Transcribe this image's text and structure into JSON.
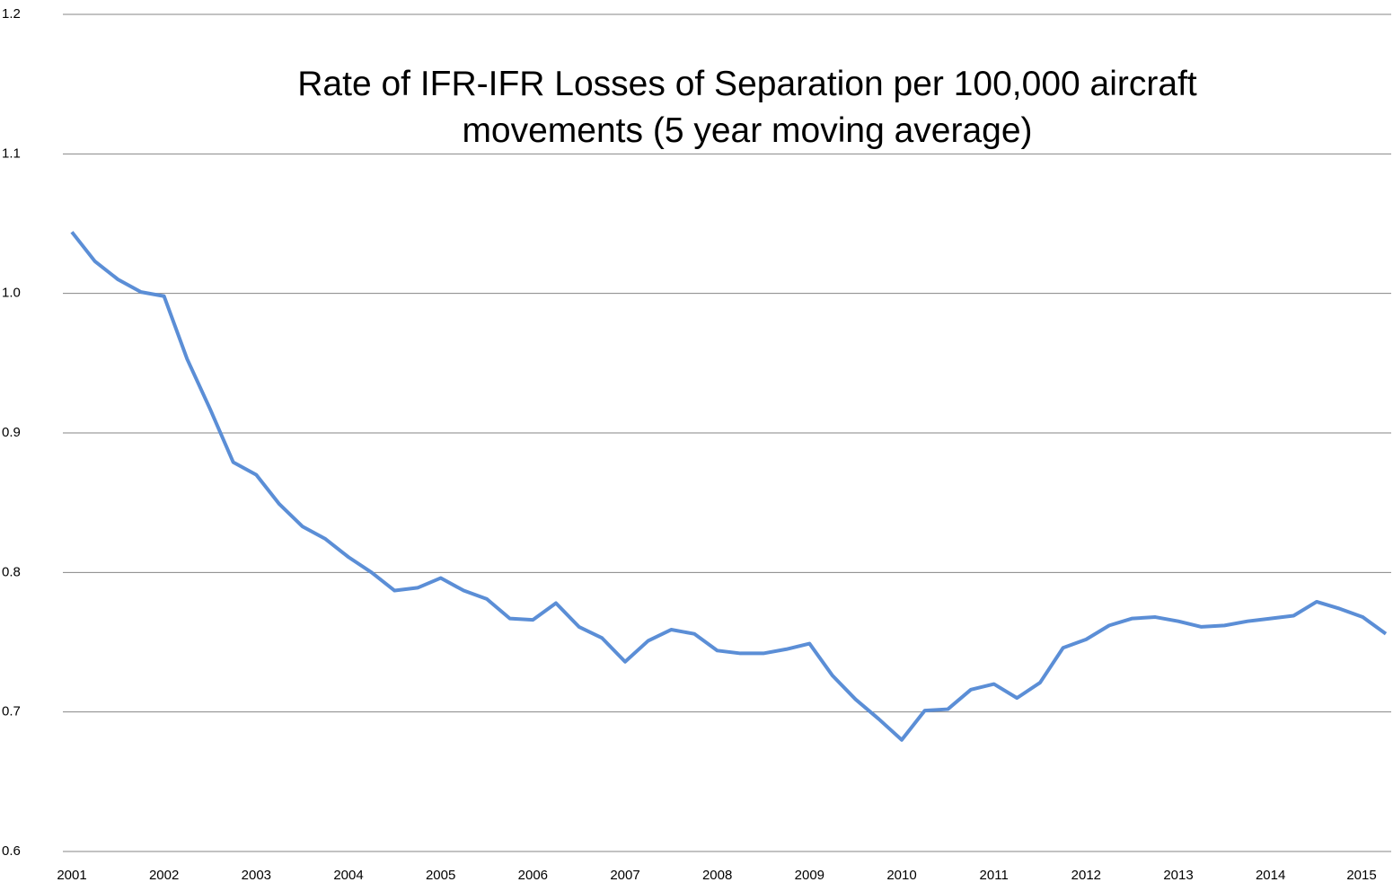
{
  "chart_data": {
    "type": "line",
    "title": "Rate of IFR-IFR Losses of Separation per 100,000 aircraft movements (5 year moving average)",
    "categories": [
      "2001",
      null,
      null,
      null,
      "2002",
      null,
      null,
      null,
      "2003",
      null,
      null,
      null,
      "2004",
      null,
      null,
      null,
      "2005",
      null,
      null,
      null,
      "2006",
      null,
      null,
      null,
      "2007",
      null,
      null,
      null,
      "2008",
      null,
      null,
      null,
      "2009",
      null,
      null,
      null,
      "2010",
      null,
      null,
      null,
      "2011",
      null,
      null,
      null,
      "2012",
      null,
      null,
      null,
      "2013",
      null,
      null,
      null,
      "2014",
      null,
      null,
      null,
      "2015",
      null
    ],
    "series": [
      {
        "name": "Rate",
        "color": "#5b8ed6",
        "values": [
          1.044,
          1.023,
          1.01,
          1.001,
          0.998,
          0.953,
          0.917,
          0.879,
          0.87,
          0.849,
          0.833,
          0.824,
          0.811,
          0.8,
          0.787,
          0.789,
          0.796,
          0.787,
          0.781,
          0.767,
          0.766,
          0.778,
          0.761,
          0.753,
          0.736,
          0.751,
          0.759,
          0.756,
          0.744,
          0.742,
          0.742,
          0.745,
          0.749,
          0.726,
          0.709,
          0.695,
          0.68,
          0.701,
          0.702,
          0.716,
          0.72,
          0.71,
          0.721,
          0.746,
          0.752,
          0.762,
          0.767,
          0.768,
          0.765,
          0.761,
          0.762,
          0.765,
          0.767,
          0.769,
          0.779,
          0.774,
          0.768,
          0.756
        ]
      }
    ],
    "ylim": [
      0.6,
      1.2
    ],
    "yticks": [
      0.6,
      0.7,
      0.8,
      0.9,
      {
        "value": 1,
        "label": "1.0"
      },
      1.1,
      1.2
    ],
    "grid": true
  }
}
